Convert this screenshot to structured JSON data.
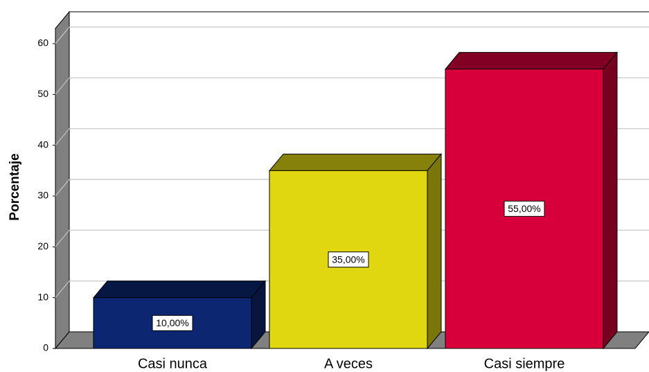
{
  "chart_data": {
    "type": "bar3d",
    "y_label": "Porcentaje",
    "categories": [
      "Casi nunca",
      "A veces",
      "Casi siempre"
    ],
    "values": [
      10,
      35,
      55
    ],
    "value_labels": [
      "10,00%",
      "35,00%",
      "55,00%"
    ],
    "colors": [
      "#0c2672",
      "#e0d710",
      "#d8003a"
    ],
    "ylim": [
      0,
      63
    ],
    "yticks": [
      0,
      10,
      20,
      30,
      40,
      50,
      60
    ],
    "grid": true
  }
}
